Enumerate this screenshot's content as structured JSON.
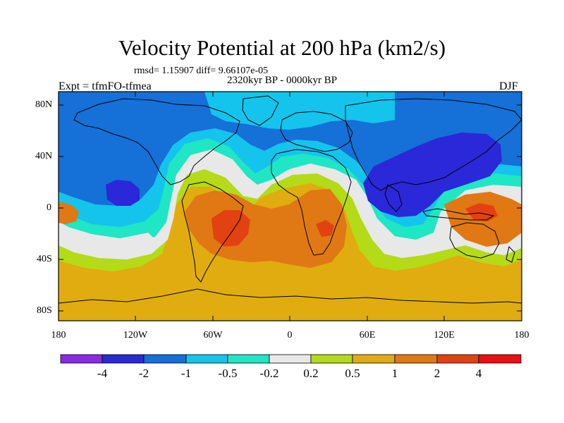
{
  "header": {
    "title": "Velocity Potential at 200 hPa (km2/s)",
    "rmsd_line": "rmsd= 1.15907 diff= 9.66107e-05",
    "period": "2320kyr BP - 0000kyr BP",
    "experiment": "Expt = tfmFO-tfmea",
    "season": "DJF"
  },
  "axes": {
    "lat_labels": [
      "80N",
      "40N",
      "0",
      "40S",
      "80S"
    ],
    "lon_labels": [
      "180",
      "120W",
      "60W",
      "0",
      "60E",
      "120E",
      "180"
    ]
  },
  "colorbar": {
    "labels": [
      "-4",
      "-2",
      "-1",
      "-0.5",
      "-0.2",
      "0.2",
      "0.5",
      "1",
      "2",
      "4"
    ],
    "colors": [
      "#8a2be2",
      "#2a28d8",
      "#1570d8",
      "#14c4ec",
      "#1fe6c4",
      "#e8e8e8",
      "#b4da18",
      "#e0ac10",
      "#e07814",
      "#e24212",
      "#e81010"
    ]
  },
  "map_colors": {
    "ocean_background": "#e0ac10",
    "coast": "#000000"
  }
}
